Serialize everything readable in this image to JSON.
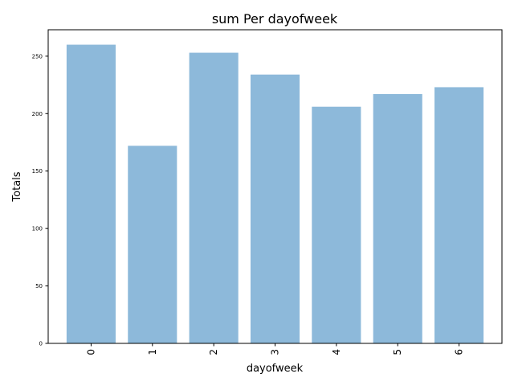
{
  "chart_data": {
    "type": "bar",
    "title": "sum Per dayofweek",
    "xlabel": "dayofweek",
    "ylabel": "Totals",
    "categories": [
      "0",
      "1",
      "2",
      "3",
      "4",
      "5",
      "6"
    ],
    "values": [
      260,
      172,
      253,
      234,
      206,
      217,
      223
    ],
    "ylim": [
      0,
      273
    ],
    "yticks": [
      0,
      50,
      100,
      150,
      200,
      250
    ],
    "bar_color": "#8db9da",
    "grid": false,
    "legend": "none",
    "xtick_rotation": "vertical"
  }
}
